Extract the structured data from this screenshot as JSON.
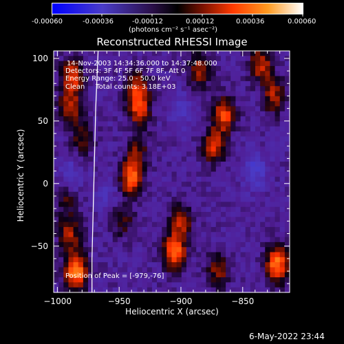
{
  "colorbar": {
    "tick_labels": [
      "-0.00060",
      "-0.00036",
      "-0.00012",
      "0.00012",
      "0.00036",
      "0.00060"
    ],
    "units_label": "(photons cm⁻² s⁻¹ asec⁻²)"
  },
  "chart_data": {
    "type": "heatmap",
    "title": "Reconstructed RHESSI Image",
    "xlabel": "Heliocentric X (arcsec)",
    "ylabel": "Heliocentric Y (arcsec)",
    "xlim": [
      -1003,
      -812
    ],
    "ylim": [
      -87,
      106
    ],
    "xticks": [
      -1000,
      -950,
      -900,
      -850
    ],
    "yticks": [
      -50,
      0,
      50,
      100
    ],
    "xtick_labels": [
      "−1000",
      "−950",
      "−900",
      "−850"
    ],
    "ytick_labels": [
      "−50",
      "0",
      "50",
      "100"
    ],
    "colorscale": {
      "min": -0.0006,
      "max": 0.0006
    },
    "peak": {
      "x": -979,
      "y": -76
    },
    "limb_curve": [
      {
        "x": -967,
        "y": 106
      },
      {
        "x": -969,
        "y": 60
      },
      {
        "x": -970,
        "y": 20
      },
      {
        "x": -971,
        "y": -20
      },
      {
        "x": -972,
        "y": -60
      },
      {
        "x": -972,
        "y": -87
      }
    ],
    "blobs": [
      {
        "x": -985,
        "y": -70,
        "value": 0.00056
      },
      {
        "x": -990,
        "y": -40,
        "value": 0.0003
      },
      {
        "x": -993,
        "y": -10,
        "value": 0.0002
      },
      {
        "x": -988,
        "y": 85,
        "value": 0.00038
      },
      {
        "x": -990,
        "y": 60,
        "value": 0.00032
      },
      {
        "x": -980,
        "y": 35,
        "value": 0.0002
      },
      {
        "x": -940,
        "y": 5,
        "value": 0.00046
      },
      {
        "x": -935,
        "y": 30,
        "value": 0.00026
      },
      {
        "x": -947,
        "y": -30,
        "value": 0.0002
      },
      {
        "x": -935,
        "y": 75,
        "value": 0.00036
      },
      {
        "x": -934,
        "y": 55,
        "value": 0.00042
      },
      {
        "x": -905,
        "y": -55,
        "value": 0.0005
      },
      {
        "x": -900,
        "y": -30,
        "value": 0.0003
      },
      {
        "x": -885,
        "y": 90,
        "value": 0.0003
      },
      {
        "x": -873,
        "y": 30,
        "value": 0.00036
      },
      {
        "x": -865,
        "y": 55,
        "value": 0.0004
      },
      {
        "x": -870,
        "y": -70,
        "value": 0.00026
      },
      {
        "x": -835,
        "y": 95,
        "value": 0.00034
      },
      {
        "x": -825,
        "y": 70,
        "value": 0.0003
      },
      {
        "x": -822,
        "y": -65,
        "value": 0.00052
      },
      {
        "x": -840,
        "y": 10,
        "value": -0.0002
      },
      {
        "x": -990,
        "y": 5,
        "value": -0.00018
      },
      {
        "x": -935,
        "y": 45,
        "value": -0.0002
      },
      {
        "x": -960,
        "y": -10,
        "value": -0.00012
      },
      {
        "x": -900,
        "y": 60,
        "value": -0.00012
      }
    ]
  },
  "info": {
    "line1": "14-Nov-2003 14:34:36.000 to 14:37:48.000",
    "line2": "Detectors: 3F 4F 5F 6F 7F 8F, Att 0",
    "line3": "Energy Range: 25.0 - 50.0 keV",
    "line4": "Clean     Total counts: 3.18E+03",
    "peak_label": "Position of Peak = [-979,-76]"
  },
  "footer": {
    "timestamp": "6-May-2022 23:44"
  }
}
